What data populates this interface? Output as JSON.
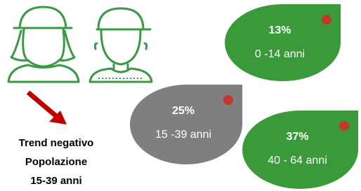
{
  "title": {
    "lines": [
      "Trend negativo",
      "Popolazione",
      "15-39 anni"
    ]
  },
  "bubbles": [
    {
      "percent": "13%",
      "label": "0 -14 anni"
    },
    {
      "percent": "25%",
      "label": "15 -39 anni"
    },
    {
      "percent": "37%",
      "label": "40 - 64 anni"
    }
  ]
}
